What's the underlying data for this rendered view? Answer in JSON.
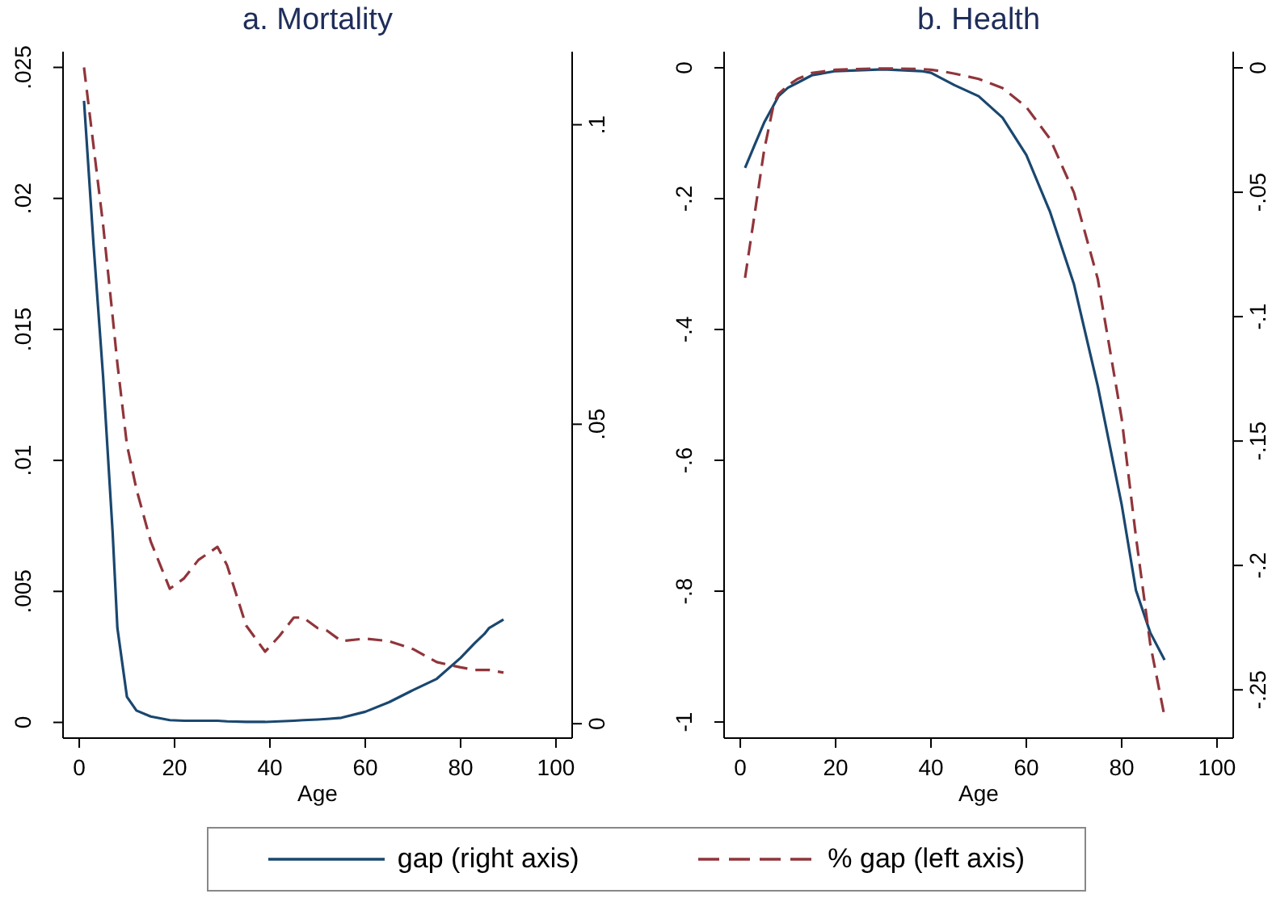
{
  "chart_data": [
    {
      "type": "line",
      "title": "a. Mortality",
      "xlabel": "Age",
      "legend": "bottom",
      "grid": false,
      "marker": "none",
      "x": [
        1,
        3,
        5,
        7,
        8,
        10,
        12,
        15,
        19,
        22,
        25,
        29,
        31,
        35,
        39,
        42,
        45,
        47,
        50,
        52,
        55,
        60,
        65,
        70,
        75,
        80,
        83,
        85,
        86,
        89
      ],
      "xlim": [
        -3.4,
        103.4
      ],
      "xticks": [
        0,
        20,
        40,
        60,
        80,
        100
      ],
      "ylim": [
        -0.0006,
        0.0256
      ],
      "yticks": [
        {
          "value": 0,
          "label": "0"
        },
        {
          "value": 0.005,
          "label": ".005"
        },
        {
          "value": 0.01,
          "label": ".01"
        },
        {
          "value": 0.015,
          "label": ".015"
        },
        {
          "value": 0.02,
          "label": ".02"
        },
        {
          "value": 0.025,
          "label": ".025"
        }
      ],
      "y2lim": [
        -0.0024,
        0.1122
      ],
      "y2ticks": [
        {
          "value": 0,
          "label": "0"
        },
        {
          "value": 0.05,
          "label": ".05"
        },
        {
          "value": 0.1,
          "label": ".1"
        }
      ],
      "series": [
        {
          "name": "gap (right axis)",
          "color": "#1a476f",
          "axis": "y2",
          "line_style": "solid",
          "values": [
            0.104,
            0.08,
            0.058,
            0.032,
            0.016,
            0.0045,
            0.0022,
            0.0012,
            0.0006,
            0.0005,
            0.0005,
            0.0005,
            0.0004,
            0.0003,
            0.0003,
            0.0004,
            0.0005,
            0.0006,
            0.0007,
            0.0008,
            0.001,
            0.002,
            0.0036,
            0.0056,
            0.0075,
            0.011,
            0.0135,
            0.015,
            0.016,
            0.0174
          ]
        },
        {
          "name": "% gap (left axis)",
          "color": "#90353b",
          "axis": "y",
          "line_style": "dashed",
          "values": [
            0.025,
            0.022,
            0.019,
            0.0155,
            0.0137,
            0.0106,
            0.0089,
            0.0069,
            0.0051,
            0.0055,
            0.0062,
            0.0067,
            0.006,
            0.0037,
            0.0027,
            0.0033,
            0.004,
            0.004,
            0.0036,
            0.0035,
            0.0031,
            0.0032,
            0.0031,
            0.0028,
            0.0023,
            0.0021,
            0.002,
            0.002,
            0.002,
            0.0019
          ]
        }
      ]
    },
    {
      "type": "line",
      "title": "b. Health",
      "xlabel": "Age",
      "legend": "bottom",
      "grid": false,
      "marker": "none",
      "x": [
        1,
        3,
        5,
        7,
        8,
        10,
        12,
        15,
        20,
        30,
        38,
        40,
        42,
        45,
        50,
        55,
        60,
        65,
        70,
        75,
        80,
        83,
        86,
        89
      ],
      "xlim": [
        -3.4,
        103.4
      ],
      "xticks": [
        0,
        20,
        40,
        60,
        80,
        100
      ],
      "ylim": [
        -1.0246,
        0.0246
      ],
      "yticks": [
        {
          "value": -1,
          "label": "-1"
        },
        {
          "value": -0.8,
          "label": "-.8"
        },
        {
          "value": -0.6,
          "label": "-.6"
        },
        {
          "value": -0.4,
          "label": "-.4"
        },
        {
          "value": -0.2,
          "label": "-.2"
        },
        {
          "value": 0,
          "label": "0"
        }
      ],
      "y2lim": [
        -0.2694,
        0.0065
      ],
      "y2ticks": [
        {
          "value": -0.25,
          "label": "-.25"
        },
        {
          "value": -0.2,
          "label": "-.2"
        },
        {
          "value": -0.15,
          "label": "-.15"
        },
        {
          "value": -0.1,
          "label": "-.1"
        },
        {
          "value": -0.05,
          "label": "-.05"
        },
        {
          "value": 0,
          "label": "0"
        }
      ],
      "series": [
        {
          "name": "gap (right axis)",
          "color": "#1a476f",
          "axis": "y2",
          "line_style": "solid",
          "values": [
            -0.0402,
            -0.031,
            -0.022,
            -0.015,
            -0.0114,
            -0.008,
            -0.006,
            -0.003,
            -0.0013,
            -0.0006,
            -0.0013,
            -0.002,
            -0.004,
            -0.007,
            -0.0114,
            -0.02,
            -0.035,
            -0.058,
            -0.087,
            -0.128,
            -0.1755,
            -0.21,
            -0.227,
            -0.238
          ]
        },
        {
          "name": "% gap (left axis)",
          "color": "#90353b",
          "axis": "y",
          "line_style": "dashed",
          "values": [
            -0.321,
            -0.224,
            -0.126,
            -0.056,
            -0.04,
            -0.027,
            -0.017,
            -0.008,
            -0.003,
            -0.001,
            -0.002,
            -0.003,
            -0.005,
            -0.009,
            -0.017,
            -0.031,
            -0.06,
            -0.109,
            -0.191,
            -0.323,
            -0.536,
            -0.717,
            -0.881,
            -0.992
          ]
        }
      ]
    }
  ]
}
